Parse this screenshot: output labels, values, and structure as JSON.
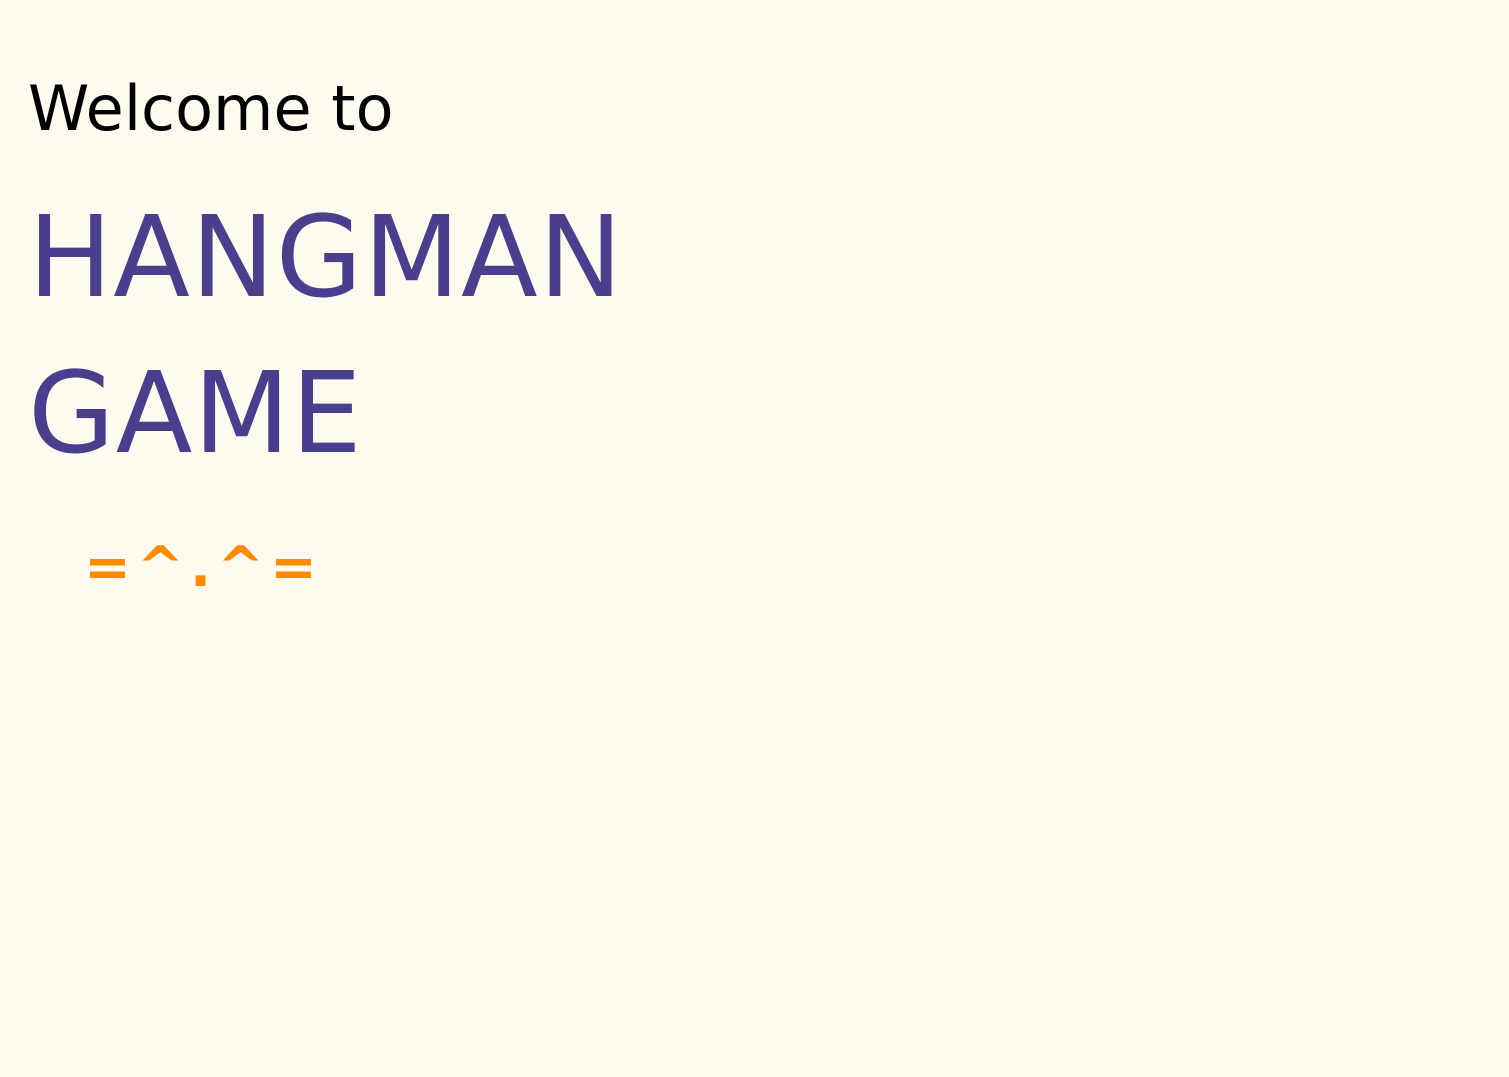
{
  "welcome_text": "Welcome to",
  "title_lines": [
    "HANGMAN",
    "GAME"
  ],
  "emoticon": "=^.^=",
  "colors": {
    "background": "#fffaef",
    "welcome": "#000000",
    "title": "#4a3f8c",
    "emoticon": "#ff8c00"
  }
}
